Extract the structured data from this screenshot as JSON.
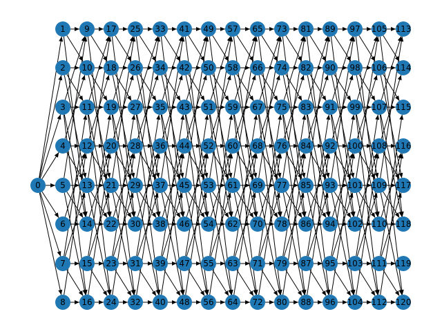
{
  "graph": {
    "type": "directed",
    "node_color": "#1f77b4",
    "edge_color": "#000000",
    "label_color": "#000000",
    "source": "0",
    "columns": [
      [
        "1",
        "2",
        "3",
        "4",
        "5",
        "6",
        "7",
        "8"
      ],
      [
        "9",
        "10",
        "11",
        "12",
        "13",
        "14",
        "15",
        "16"
      ],
      [
        "17",
        "18",
        "19",
        "20",
        "21",
        "22",
        "23",
        "24"
      ],
      [
        "25",
        "26",
        "27",
        "28",
        "29",
        "30",
        "31",
        "32"
      ],
      [
        "33",
        "34",
        "35",
        "36",
        "37",
        "38",
        "39",
        "40"
      ],
      [
        "41",
        "42",
        "43",
        "44",
        "45",
        "46",
        "47",
        "48"
      ],
      [
        "49",
        "50",
        "51",
        "52",
        "53",
        "54",
        "55",
        "56"
      ],
      [
        "57",
        "58",
        "59",
        "60",
        "61",
        "62",
        "63",
        "64"
      ],
      [
        "65",
        "66",
        "67",
        "68",
        "69",
        "70",
        "71",
        "72"
      ],
      [
        "73",
        "74",
        "75",
        "76",
        "77",
        "78",
        "79",
        "80"
      ],
      [
        "81",
        "82",
        "83",
        "84",
        "85",
        "86",
        "87",
        "88"
      ],
      [
        "89",
        "90",
        "91",
        "92",
        "93",
        "94",
        "95",
        "96"
      ],
      [
        "97",
        "98",
        "99",
        "100",
        "101",
        "102",
        "103",
        "104"
      ],
      [
        "105",
        "106",
        "107",
        "108",
        "109",
        "110",
        "111",
        "112"
      ],
      [
        "113",
        "114",
        "115",
        "116",
        "117",
        "118",
        "119",
        "120"
      ]
    ]
  }
}
